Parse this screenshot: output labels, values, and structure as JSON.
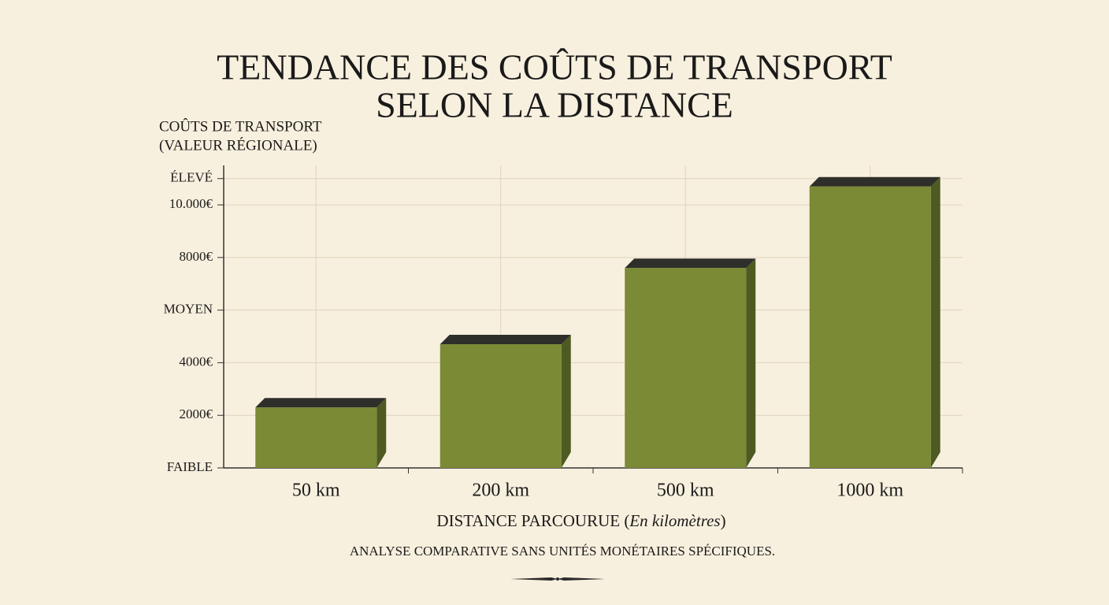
{
  "chart_data": {
    "type": "bar",
    "title": [
      "TENDANCE DES COÛTS DE TRANSPORT",
      "SELON LA DISTANCE"
    ],
    "y_label": [
      "COÛTS DE TRANSPORT",
      "(VALEUR RÉGIONALE)"
    ],
    "x_label": [
      "DISTANCE PARCOURUE (",
      "En kilomètres",
      ")"
    ],
    "footnote": "ANALYSE COMPARATIVE SANS UNITÉS MONÉTAIRES SPÉCIFIQUES.",
    "categories": [
      "50 km",
      "200 km",
      "500 km",
      "1000 km"
    ],
    "values": [
      2300,
      4700,
      7600,
      10700
    ],
    "color": "#7a8a35",
    "ylim": [
      0,
      11500
    ],
    "yticks": [
      {
        "value": 0,
        "label": "FAIBLE"
      },
      {
        "value": 2000,
        "label": "2000€"
      },
      {
        "value": 4000,
        "label": "4000€"
      },
      {
        "value": 6000,
        "label": "MOYEN"
      },
      {
        "value": 8000,
        "label": "8000€"
      },
      {
        "value": 10000,
        "label": "10.000€"
      },
      {
        "value": 11000,
        "label": "ÉLEVÉ"
      }
    ],
    "grid": true
  }
}
